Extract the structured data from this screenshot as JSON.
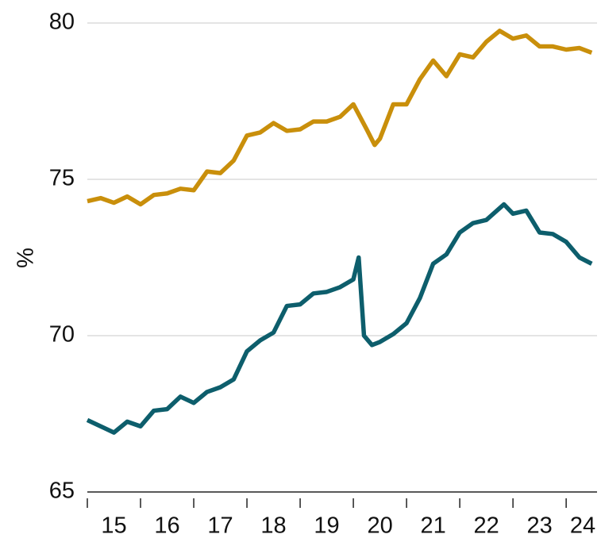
{
  "chart_data": {
    "type": "line",
    "y_label": "%",
    "xlim": [
      15,
      24.58
    ],
    "xticks": [
      15,
      16,
      17,
      18,
      19,
      20,
      21,
      22,
      23,
      24
    ],
    "ylim": [
      65,
      80
    ],
    "yticks": [
      65,
      70,
      75,
      80
    ],
    "grid": true,
    "series": [
      {
        "color": "#c98f0b",
        "x": [
          15.0,
          15.25,
          15.5,
          15.75,
          16.0,
          16.25,
          16.5,
          16.75,
          17.0,
          17.25,
          17.5,
          17.75,
          18.0,
          18.25,
          18.5,
          18.75,
          19.0,
          19.25,
          19.5,
          19.75,
          20.0,
          20.25,
          20.4,
          20.5,
          20.75,
          21.0,
          21.25,
          21.5,
          21.75,
          22.0,
          22.25,
          22.5,
          22.75,
          23.0,
          23.25,
          23.5,
          23.75,
          24.0,
          24.25,
          24.48
        ],
        "values": [
          74.3,
          74.4,
          74.25,
          74.45,
          74.2,
          74.5,
          74.55,
          74.7,
          74.65,
          75.25,
          75.2,
          75.6,
          76.4,
          76.5,
          76.8,
          76.55,
          76.6,
          76.85,
          76.85,
          77.0,
          77.4,
          76.6,
          76.1,
          76.3,
          77.4,
          77.4,
          78.2,
          78.8,
          78.3,
          79.0,
          78.9,
          79.4,
          79.75,
          79.5,
          79.6,
          79.25,
          79.25,
          79.15,
          79.2,
          79.05
        ]
      },
      {
        "color": "#0d5e6c",
        "x": [
          15.0,
          15.25,
          15.5,
          15.75,
          16.0,
          16.25,
          16.5,
          16.75,
          17.0,
          17.25,
          17.5,
          17.75,
          18.0,
          18.25,
          18.5,
          18.75,
          19.0,
          19.25,
          19.5,
          19.75,
          20.0,
          20.1,
          20.2,
          20.35,
          20.5,
          20.75,
          21.0,
          21.25,
          21.5,
          21.75,
          22.0,
          22.25,
          22.5,
          22.83,
          23.0,
          23.25,
          23.5,
          23.75,
          24.0,
          24.25,
          24.48
        ],
        "values": [
          67.3,
          67.1,
          66.9,
          67.25,
          67.1,
          67.6,
          67.65,
          68.05,
          67.85,
          68.2,
          68.35,
          68.6,
          69.5,
          69.85,
          70.1,
          70.95,
          71.0,
          71.35,
          71.4,
          71.55,
          71.8,
          72.5,
          70.0,
          69.7,
          69.8,
          70.05,
          70.4,
          71.2,
          72.3,
          72.6,
          73.3,
          73.6,
          73.7,
          74.2,
          73.9,
          74.0,
          73.3,
          73.25,
          73.0,
          72.5,
          72.3
        ]
      }
    ]
  }
}
